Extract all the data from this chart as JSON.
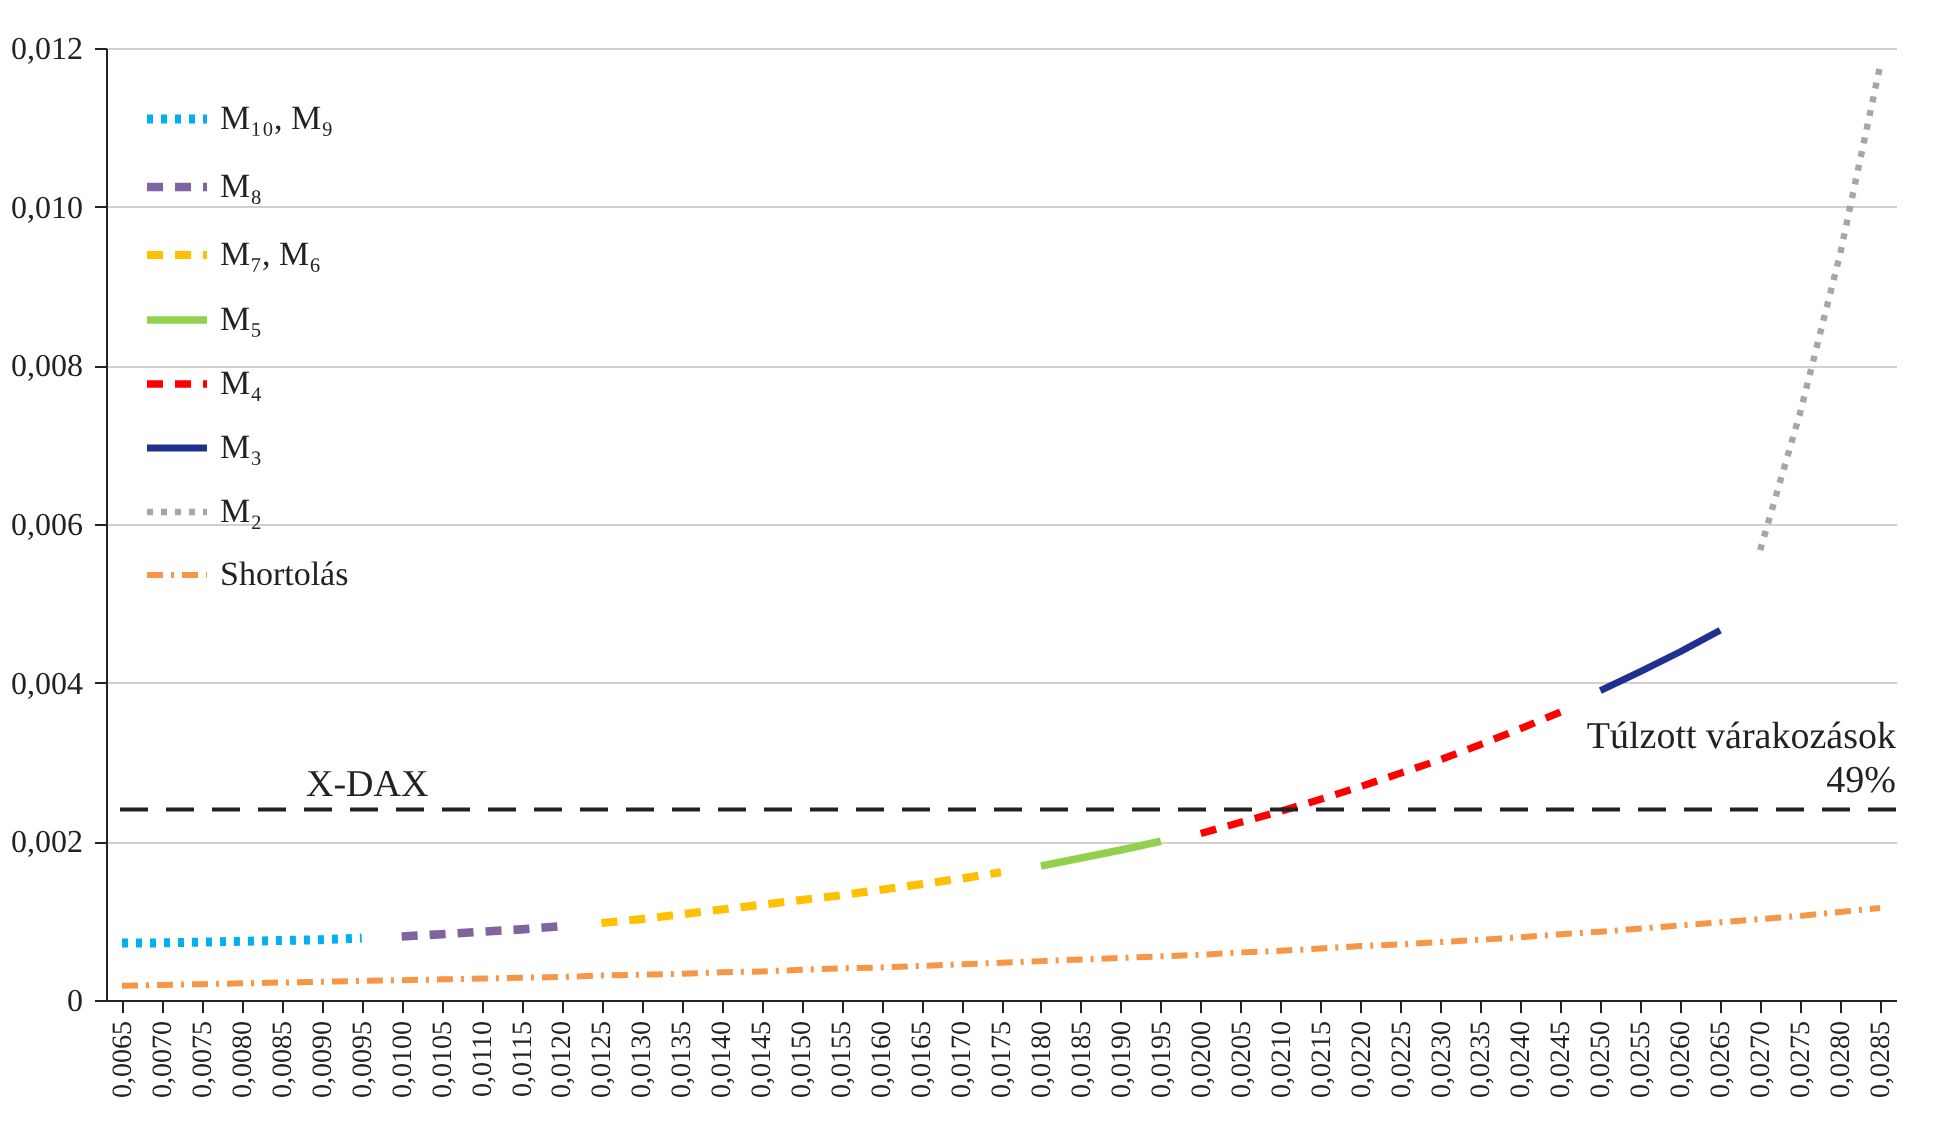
{
  "chart_data": {
    "type": "line",
    "categories": [
      "0,0065",
      "0,0070",
      "0,0075",
      "0,0080",
      "0,0085",
      "0,0090",
      "0,0095",
      "0,0100",
      "0,0105",
      "0,0110",
      "0,0115",
      "0,0120",
      "0,0125",
      "0,0130",
      "0,0135",
      "0,0140",
      "0,0145",
      "0,0150",
      "0,0155",
      "0,0160",
      "0,0165",
      "0,0170",
      "0,0175",
      "0,0180",
      "0,0185",
      "0,0190",
      "0,0195",
      "0,0200",
      "0,0205",
      "0,0210",
      "0,0215",
      "0,0220",
      "0,0225",
      "0,0230",
      "0,0235",
      "0,0240",
      "0,0245",
      "0,0250",
      "0,0255",
      "0,0260",
      "0,0265",
      "0,0270",
      "0,0275",
      "0,0280",
      "0,0285"
    ],
    "series": [
      {
        "name": "M₁₀, M₉",
        "color": "#00b0f0",
        "line_style": "dotted",
        "values": [
          0.00072,
          0.00072,
          0.00073,
          0.00074,
          0.00075,
          0.00076,
          0.00078,
          null,
          null,
          null,
          null,
          null,
          null,
          null,
          null,
          null,
          null,
          null,
          null,
          null,
          null,
          null,
          null,
          null,
          null,
          null,
          null,
          null,
          null,
          null,
          null,
          null,
          null,
          null,
          null,
          null,
          null,
          null,
          null,
          null,
          null,
          null,
          null,
          null,
          null
        ]
      },
      {
        "name": "M₈",
        "color": "#8064a2",
        "line_style": "dashed",
        "values": [
          null,
          null,
          null,
          null,
          null,
          null,
          null,
          0.0008,
          0.00083,
          0.00086,
          0.00089,
          0.00093,
          null,
          null,
          null,
          null,
          null,
          null,
          null,
          null,
          null,
          null,
          null,
          null,
          null,
          null,
          null,
          null,
          null,
          null,
          null,
          null,
          null,
          null,
          null,
          null,
          null,
          null,
          null,
          null,
          null,
          null,
          null,
          null,
          null
        ]
      },
      {
        "name": "M₇, M₆",
        "color": "#ffc000",
        "line_style": "dashed",
        "values": [
          null,
          null,
          null,
          null,
          null,
          null,
          null,
          null,
          null,
          null,
          null,
          null,
          0.00097,
          0.00102,
          0.00108,
          0.00114,
          0.0012,
          0.00126,
          0.00132,
          0.00139,
          0.00146,
          0.00153,
          0.00161,
          null,
          null,
          null,
          null,
          null,
          null,
          null,
          null,
          null,
          null,
          null,
          null,
          null,
          null,
          null,
          null,
          null,
          null,
          null,
          null,
          null,
          null
        ]
      },
      {
        "name": "M₅",
        "color": "#92d050",
        "line_style": "solid",
        "values": [
          null,
          null,
          null,
          null,
          null,
          null,
          null,
          null,
          null,
          null,
          null,
          null,
          null,
          null,
          null,
          null,
          null,
          null,
          null,
          null,
          null,
          null,
          null,
          0.00169,
          0.00179,
          0.00189,
          0.002,
          null,
          null,
          null,
          null,
          null,
          null,
          null,
          null,
          null,
          null,
          null,
          null,
          null,
          null,
          null,
          null,
          null,
          null
        ]
      },
      {
        "name": "M₄",
        "color": "#ff0000",
        "line_style": "dashed",
        "values": [
          null,
          null,
          null,
          null,
          null,
          null,
          null,
          null,
          null,
          null,
          null,
          null,
          null,
          null,
          null,
          null,
          null,
          null,
          null,
          null,
          null,
          null,
          null,
          null,
          null,
          null,
          null,
          0.0021,
          0.00224,
          0.00238,
          0.00253,
          0.00269,
          0.00286,
          0.00303,
          0.00322,
          0.00342,
          0.00363,
          null,
          null,
          null,
          null,
          null,
          null,
          null,
          null
        ]
      },
      {
        "name": "M₃",
        "color": "#203090",
        "line_style": "solid",
        "values": [
          null,
          null,
          null,
          null,
          null,
          null,
          null,
          null,
          null,
          null,
          null,
          null,
          null,
          null,
          null,
          null,
          null,
          null,
          null,
          null,
          null,
          null,
          null,
          null,
          null,
          null,
          null,
          null,
          null,
          null,
          null,
          null,
          null,
          null,
          null,
          null,
          null,
          0.0039,
          0.00414,
          0.00439,
          0.00466,
          null,
          null,
          null,
          null
        ]
      },
      {
        "name": "M₂",
        "color": "#a6a6a6",
        "line_style": "dotted",
        "values": [
          null,
          null,
          null,
          null,
          null,
          null,
          null,
          null,
          null,
          null,
          null,
          null,
          null,
          null,
          null,
          null,
          null,
          null,
          null,
          null,
          null,
          null,
          null,
          null,
          null,
          null,
          null,
          null,
          null,
          null,
          null,
          null,
          null,
          null,
          null,
          null,
          null,
          null,
          null,
          null,
          null,
          0.00567,
          0.0074,
          0.0094,
          0.01177
        ]
      },
      {
        "name": "Shortolás",
        "color": "#f79646",
        "line_style": "dashdot",
        "values": [
          0.00018,
          0.00019,
          0.0002,
          0.00021,
          0.00022,
          0.00023,
          0.00024,
          0.00025,
          0.00026,
          0.00027,
          0.00028,
          0.00029,
          0.00031,
          0.00032,
          0.00033,
          0.00035,
          0.00036,
          0.00038,
          0.0004,
          0.00041,
          0.00043,
          0.00045,
          0.00047,
          0.00049,
          0.00051,
          0.00053,
          0.00055,
          0.00057,
          0.0006,
          0.00062,
          0.00065,
          0.00068,
          0.0007,
          0.00073,
          0.00076,
          0.00079,
          0.00083,
          0.00086,
          0.0009,
          0.00094,
          0.00098,
          0.00102,
          0.00106,
          0.00111,
          0.00116
        ]
      }
    ],
    "ylim": [
      0,
      0.012
    ],
    "yticks": [
      0,
      {
        "value": 0.002,
        "label": "0,002"
      },
      {
        "value": 0.004,
        "label": "0,004"
      },
      {
        "value": 0.006,
        "label": "0,006"
      },
      {
        "value": 0.008,
        "label": "0,008"
      },
      {
        "value": 0.01,
        "label": "0,010"
      },
      {
        "value": 0.012,
        "label": "0,012"
      }
    ],
    "grid": "y",
    "legend": "top left",
    "ref_lines": [
      {
        "axis": "y",
        "value": 0.0024,
        "label": "X-DAX",
        "color": "#222222",
        "line_style": "longdash"
      }
    ],
    "annotations": [
      "Túlzott várakozások\n49%"
    ]
  }
}
